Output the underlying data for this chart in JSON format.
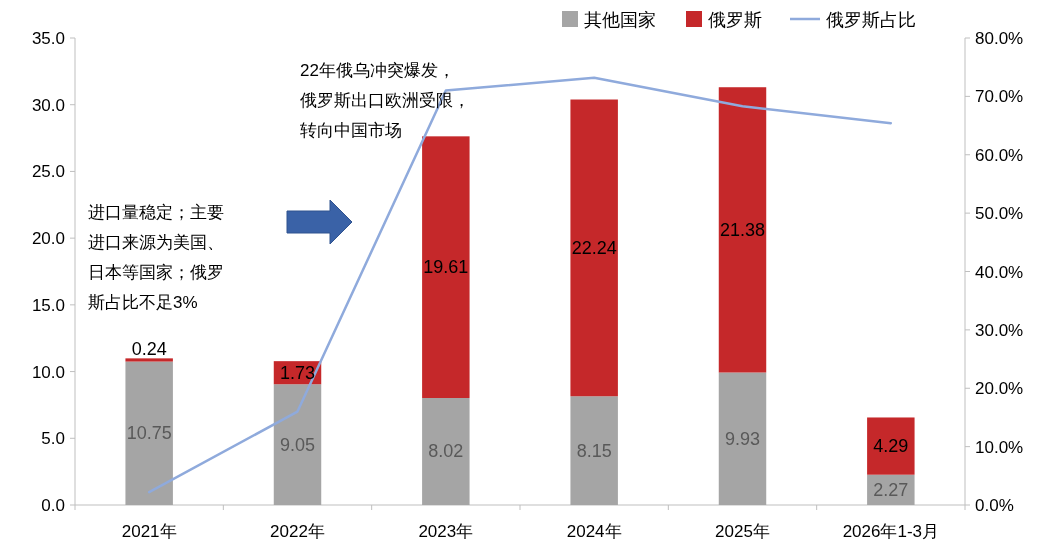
{
  "chart_data": {
    "type": "bar",
    "stacked": true,
    "categories": [
      "2021年",
      "2022年",
      "2023年",
      "2024年",
      "2025年",
      "2026年1-3月"
    ],
    "series": [
      {
        "name": "其他国家",
        "color": "#a5a5a5",
        "values": [
          10.75,
          9.05,
          8.02,
          8.15,
          9.93,
          2.27
        ],
        "value_labels": [
          "10.75",
          "9.05",
          "8.02",
          "8.15",
          "9.93",
          "2.27"
        ]
      },
      {
        "name": "俄罗斯",
        "color": "#c5282a",
        "values": [
          0.24,
          1.73,
          19.61,
          22.24,
          21.38,
          4.29
        ],
        "value_labels": [
          "0.24",
          "1.73",
          "19.61",
          "22.24",
          "21.38",
          "4.29"
        ]
      },
      {
        "name": "俄罗斯占比",
        "type": "line",
        "axis": "y2",
        "color": "#8faadc",
        "values": [
          2.2,
          16.0,
          71.0,
          73.2,
          68.3,
          65.4
        ]
      }
    ],
    "ylim": [
      0,
      35
    ],
    "yticks": [
      {
        "value": 0,
        "label": "0.0"
      },
      {
        "value": 5,
        "label": "5.0"
      },
      {
        "value": 10,
        "label": "10.0"
      },
      {
        "value": 15,
        "label": "15.0"
      },
      {
        "value": 20,
        "label": "20.0"
      },
      {
        "value": 25,
        "label": "25.0"
      },
      {
        "value": 30,
        "label": "30.0"
      },
      {
        "value": 35,
        "label": "35.0"
      }
    ],
    "y2lim": [
      0,
      80
    ],
    "y2ticks": [
      {
        "value": 0,
        "label": "0.0%"
      },
      {
        "value": 10,
        "label": "10.0%"
      },
      {
        "value": 20,
        "label": "20.0%"
      },
      {
        "value": 30,
        "label": "30.0%"
      },
      {
        "value": 40,
        "label": "40.0%"
      },
      {
        "value": 50,
        "label": "50.0%"
      },
      {
        "value": 60,
        "label": "60.0%"
      },
      {
        "value": 70,
        "label": "70.0%"
      },
      {
        "value": 80,
        "label": "80.0%"
      }
    ],
    "annotations": [
      "进口量稳定；主要进口来源为美国、日本等国家；俄罗斯占比不足3%",
      "22年俄乌冲突爆发，俄罗斯出口欧洲受限，转向中国市场"
    ],
    "legend": "top right",
    "grid": false
  }
}
